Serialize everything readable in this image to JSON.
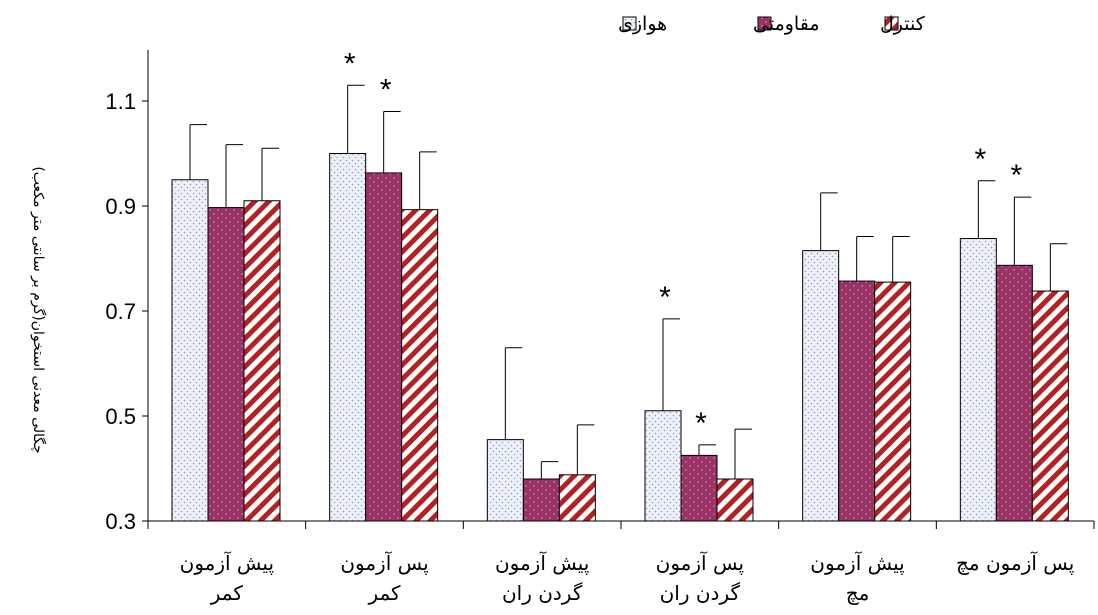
{
  "chart_data": {
    "type": "bar",
    "ylabel": "چگالی معدنی استخوان(گرم بر سانتی متر مکعب)",
    "ylim": [
      0.3,
      1.2
    ],
    "yticks": [
      0.3,
      0.5,
      0.7,
      0.9,
      1.1
    ],
    "categories": [
      [
        "پیش آزمون",
        "کمر"
      ],
      [
        "پس آزمون",
        "کمر"
      ],
      [
        "پیش آزمون",
        "گردن ران"
      ],
      [
        "پس آزمون",
        "گردن ران"
      ],
      [
        "پیش آزمون",
        "مچ"
      ],
      [
        "پس آزمون مچ",
        ""
      ]
    ],
    "series": [
      {
        "name": "هوازی",
        "pattern": "dots",
        "color": "#e9ecf7",
        "values": [
          0.95,
          1.0,
          0.455,
          0.51,
          0.815,
          0.838
        ],
        "errors": [
          0.105,
          0.13,
          0.175,
          0.175,
          0.11,
          0.11
        ]
      },
      {
        "name": "مقاومتی",
        "pattern": "dots",
        "color": "#993366",
        "values": [
          0.897,
          0.963,
          0.38,
          0.425,
          0.757,
          0.787
        ],
        "errors": [
          0.12,
          0.117,
          0.033,
          0.02,
          0.085,
          0.13
        ]
      },
      {
        "name": "کنترل",
        "pattern": "diagonal-stripes",
        "color": "#b22222",
        "values": [
          0.91,
          0.893,
          0.388,
          0.38,
          0.755,
          0.738
        ],
        "errors": [
          0.1,
          0.11,
          0.095,
          0.095,
          0.087,
          0.09
        ]
      }
    ],
    "significance": [
      {
        "category": 1,
        "series": 0,
        "mark": "*"
      },
      {
        "category": 1,
        "series": 1,
        "mark": "*"
      },
      {
        "category": 3,
        "series": 0,
        "mark": "*"
      },
      {
        "category": 3,
        "series": 1,
        "mark": "*"
      },
      {
        "category": 5,
        "series": 0,
        "mark": "*"
      },
      {
        "category": 5,
        "series": 1,
        "mark": "*"
      }
    ],
    "legend_position": "top-right",
    "grid": false
  }
}
